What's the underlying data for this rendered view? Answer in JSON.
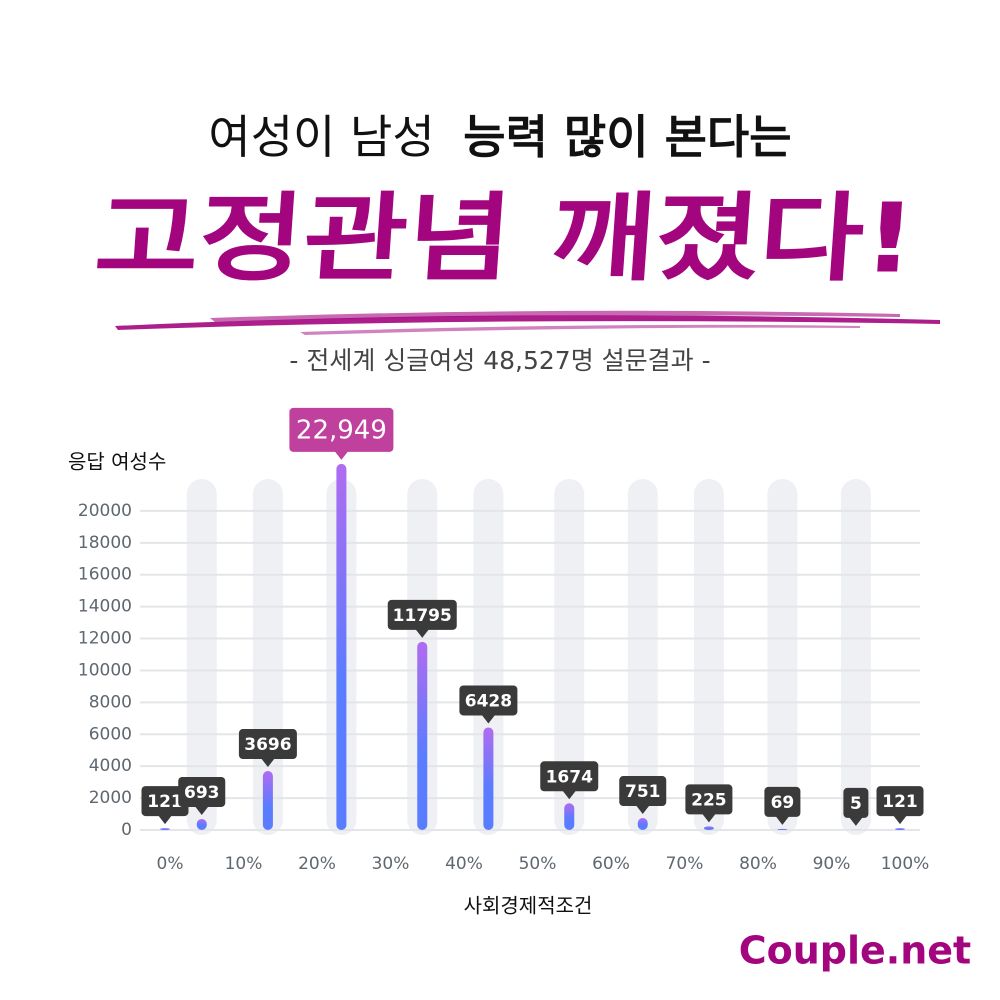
{
  "title": {
    "light": "여성이 남성",
    "bold": "능력 많이 본다는"
  },
  "headline": "고정관념 깨졌다!",
  "subtitle": "- 전세계 싱글여성 48,527명 설문결과 -",
  "brand": "Couple.net",
  "chart_data": {
    "type": "bar",
    "y_label": "응답 여성수",
    "x_label": "사회경제적조건",
    "x": [
      0,
      5,
      14,
      24,
      35,
      44,
      55,
      65,
      74,
      84,
      94,
      100
    ],
    "values": [
      121,
      693,
      3696,
      22949,
      11795,
      6428,
      1674,
      751,
      225,
      69,
      5,
      121
    ],
    "value_labels": [
      "121",
      "693",
      "3696",
      "22,949",
      "11795",
      "6428",
      "1674",
      "751",
      "225",
      "69",
      "5",
      "121"
    ],
    "color": [
      "#b06cf0",
      "#5a7cff"
    ],
    "highlight_color": "#c0409e",
    "xlim": [
      0,
      100
    ],
    "xticks": [
      {
        "value": 0,
        "label": "0%"
      },
      {
        "value": 10,
        "label": "10%"
      },
      {
        "value": 20,
        "label": "20%"
      },
      {
        "value": 30,
        "label": "30%"
      },
      {
        "value": 40,
        "label": "40%"
      },
      {
        "value": 50,
        "label": "50%"
      },
      {
        "value": 60,
        "label": "60%"
      },
      {
        "value": 70,
        "label": "70%"
      },
      {
        "value": 80,
        "label": "80%"
      },
      {
        "value": 90,
        "label": "90%"
      },
      {
        "value": 100,
        "label": "100%"
      }
    ],
    "ylim": [
      0,
      22000
    ],
    "yticks": [
      0,
      2000,
      4000,
      6000,
      8000,
      10000,
      12000,
      14000,
      16000,
      18000,
      20000
    ],
    "grid": true
  }
}
